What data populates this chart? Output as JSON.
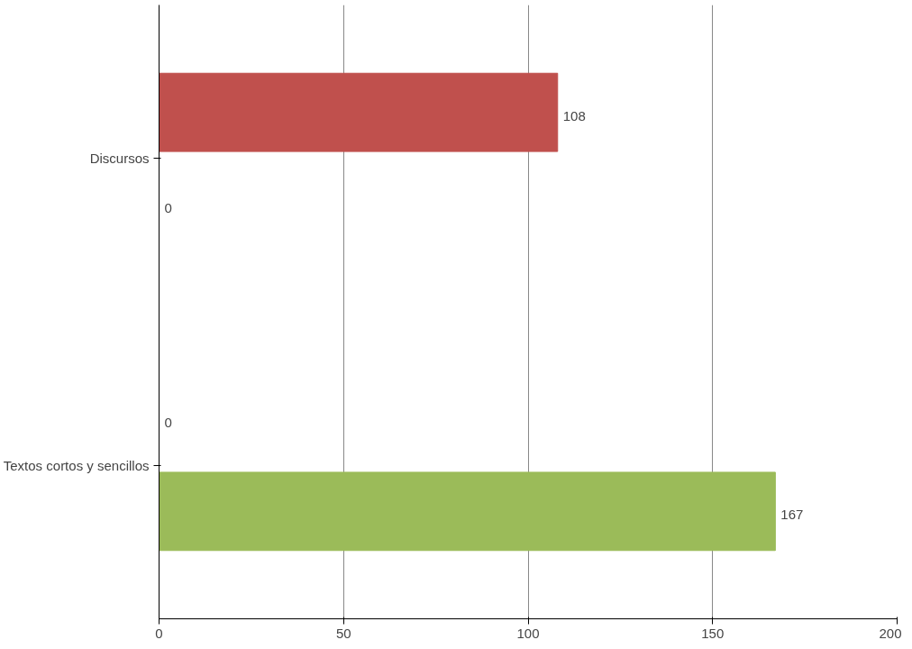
{
  "chart_data": {
    "type": "bar",
    "orientation": "horizontal",
    "categories": [
      "Discursos",
      "Textos cortos y sencillos"
    ],
    "series": [
      {
        "color": "#c0504d",
        "values": [
          108,
          0
        ]
      },
      {
        "color": "#9bbb59",
        "values": [
          0,
          167
        ]
      }
    ],
    "xlim": [
      0,
      200
    ],
    "xticks": [
      0,
      50,
      100,
      150,
      200
    ],
    "grid": "x",
    "data_labels": true
  }
}
